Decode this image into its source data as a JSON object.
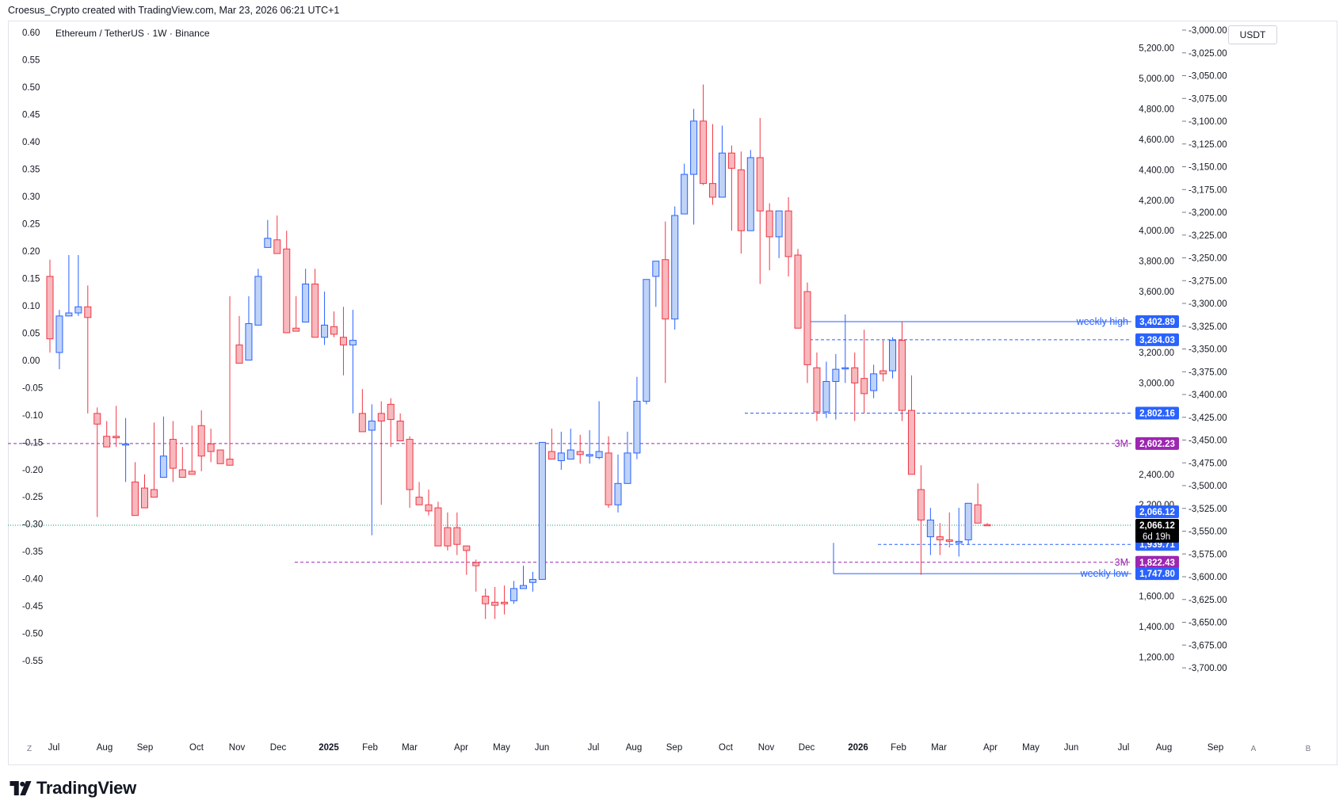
{
  "header": {
    "credit": "Croesus_Crypto created with TradingView.com, Mar 23, 2026 06:21 UTC+1"
  },
  "symbol_title": "Ethereum / TetherUS · 1W · Binance",
  "currency": "USDT",
  "footer": {
    "logo_text": "TradingView"
  },
  "axis_buttons": {
    "left": "Z",
    "auto": "A",
    "right": "B"
  },
  "colors": {
    "up_fill": "#bfd3f7",
    "up_border": "#2962ff",
    "down_fill": "#f7b9bd",
    "down_border": "#f23645",
    "blue_line": "#2962ff",
    "purple_line": "#9c27b0",
    "current_line": "#089981",
    "grid": "#f0f3fa"
  },
  "chart_data": {
    "type": "candlestick",
    "interval": "1W",
    "grid": false,
    "x_labels": [
      "Jul",
      "Aug",
      "Sep",
      "Oct",
      "Nov",
      "Dec",
      "2025",
      "Feb",
      "Mar",
      "Apr",
      "May",
      "Jun",
      "Jul",
      "Aug",
      "Sep",
      "Oct",
      "Nov",
      "Dec",
      "2026",
      "Feb",
      "Mar",
      "Apr",
      "May",
      "Jun",
      "Jul",
      "Aug",
      "Sep"
    ],
    "y_right_ticks": [
      "5,200.00",
      "5,000.00",
      "4,800.00",
      "4,600.00",
      "4,400.00",
      "4,200.00",
      "4,000.00",
      "3,800.00",
      "3,600.00",
      "3,400.00",
      "3,200.00",
      "3,000.00",
      "2,800.00",
      "2,600.00",
      "2,400.00",
      "2,200.00",
      "2,000.00",
      "1,800.00",
      "1,600.00",
      "1,400.00",
      "1,200.00"
    ],
    "y_left_ticks": [
      "0.60",
      "0.55",
      "0.50",
      "0.45",
      "0.40",
      "0.35",
      "0.30",
      "0.25",
      "0.20",
      "0.15",
      "0.10",
      "0.05",
      "0.00",
      "-0.05",
      "-0.10",
      "-0.15",
      "-0.20",
      "-0.25",
      "-0.30",
      "-0.35",
      "-0.40",
      "-0.45",
      "-0.50",
      "-0.55"
    ],
    "y_far_right_ticks": [
      "-3,000.00",
      "-3,025.00",
      "-3,050.00",
      "-3,075.00",
      "-3,100.00",
      "-3,125.00",
      "-3,150.00",
      "-3,175.00",
      "-3,200.00",
      "-3,225.00",
      "-3,250.00",
      "-3,275.00",
      "-3,300.00",
      "-3,325.00",
      "-3,350.00",
      "-3,375.00",
      "-3,400.00",
      "-3,425.00",
      "-3,450.00",
      "-3,475.00",
      "-3,500.00",
      "-3,525.00",
      "-3,550.00",
      "-3,575.00",
      "-3,600.00",
      "-3,625.00",
      "-3,650.00",
      "-3,675.00",
      "-3,700.00"
    ],
    "candles": [
      [
        3700,
        3810,
        3290,
        3200
      ],
      [
        3200,
        3480,
        3440,
        3090
      ],
      [
        3440,
        3840,
        3460,
        3480
      ],
      [
        3460,
        3840,
        3500,
        3440
      ],
      [
        3500,
        3640,
        3430,
        2800
      ],
      [
        2800,
        2840,
        2730,
        2120
      ],
      [
        2650,
        2750,
        2580,
        2660
      ],
      [
        2650,
        2850,
        2640,
        2580
      ],
      [
        2600,
        2770,
        2600,
        2350
      ],
      [
        2350,
        2480,
        2130,
        2270
      ],
      [
        2310,
        2400,
        2180,
        2200
      ],
      [
        2300,
        2740,
        2250,
        2430
      ],
      [
        2380,
        2780,
        2520,
        2620
      ],
      [
        2630,
        2750,
        2440,
        2350
      ],
      [
        2430,
        2580,
        2380,
        2400
      ],
      [
        2420,
        2720,
        2400,
        2720
      ],
      [
        2720,
        2820,
        2520,
        2420
      ],
      [
        2600,
        2700,
        2550,
        2480
      ],
      [
        2560,
        2540,
        2470,
        2470
      ],
      [
        2500,
        3570,
        2460,
        3610
      ],
      [
        3250,
        3440,
        3130,
        3150
      ],
      [
        3150,
        3570,
        3390,
        3450
      ],
      [
        3380,
        3750,
        3700,
        3950
      ],
      [
        3890,
        4070,
        3950,
        4110
      ],
      [
        3940,
        4100,
        3850,
        4200
      ],
      [
        3880,
        4000,
        3330,
        3330
      ],
      [
        3360,
        3570,
        3340,
        3470
      ],
      [
        3400,
        3750,
        3650,
        3430
      ],
      [
        3650,
        3750,
        3300,
        3300
      ],
      [
        3300,
        3600,
        3380,
        3250
      ],
      [
        3370,
        3470,
        3320,
        3300
      ],
      [
        3300,
        3500,
        3250,
        3050
      ],
      [
        3250,
        3480,
        3280,
        2800
      ],
      [
        2800,
        2960,
        2680,
        2700
      ],
      [
        2690,
        2860,
        2750,
        2000
      ],
      [
        2800,
        2880,
        2750,
        2200
      ],
      [
        2860,
        2900,
        2760,
        2580
      ],
      [
        2750,
        2800,
        2620,
        2620
      ],
      [
        2630,
        2650,
        2300,
        2180
      ],
      [
        2250,
        2350,
        2200,
        2220
      ],
      [
        2200,
        2300,
        2160,
        2130
      ],
      [
        2180,
        2220,
        1930,
        2050
      ],
      [
        2050,
        2150,
        1930,
        1900
      ],
      [
        2050,
        2150,
        1940,
        1870
      ],
      [
        1930,
        1840,
        1900,
        1740
      ],
      [
        1820,
        1840,
        1800,
        1630
      ],
      [
        1600,
        1650,
        1550,
        1450
      ],
      [
        1560,
        1660,
        1540,
        1450
      ],
      [
        1560,
        1670,
        1550,
        1480
      ],
      [
        1570,
        1700,
        1650,
        1550
      ],
      [
        1650,
        1800,
        1670,
        1720
      ],
      [
        1690,
        1760,
        1710,
        1630
      ],
      [
        1710,
        2610,
        2610,
        1710
      ],
      [
        2550,
        2700,
        2500,
        2500
      ],
      [
        2490,
        2680,
        2540,
        2430
      ],
      [
        2500,
        2700,
        2560,
        2550
      ],
      [
        2550,
        2660,
        2530,
        2470
      ],
      [
        2520,
        2690,
        2530,
        2470
      ],
      [
        2510,
        2880,
        2550,
        2500
      ],
      [
        2540,
        2650,
        2200,
        2180
      ],
      [
        2200,
        2530,
        2340,
        2150
      ],
      [
        2340,
        2680,
        2540,
        2400
      ],
      [
        2540,
        3040,
        2880,
        2500
      ],
      [
        2880,
        3570,
        3680,
        2860
      ],
      [
        3700,
        3760,
        3800,
        3500
      ],
      [
        3810,
        4060,
        3420,
        3000
      ],
      [
        3420,
        4160,
        4100,
        3350
      ],
      [
        4110,
        4440,
        4370,
        4300
      ],
      [
        4370,
        4800,
        4720,
        4040
      ],
      [
        4720,
        4960,
        4310,
        4300
      ],
      [
        4310,
        4700,
        4220,
        4170
      ],
      [
        4220,
        4690,
        4510,
        4220
      ],
      [
        4510,
        4560,
        4410,
        4000
      ],
      [
        4400,
        4520,
        4000,
        3850
      ],
      [
        4000,
        4530,
        4480,
        4000
      ],
      [
        4480,
        4740,
        4130,
        3650
      ],
      [
        4130,
        4180,
        3960,
        3740
      ],
      [
        3960,
        4120,
        4130,
        3820
      ],
      [
        4130,
        4220,
        3830,
        3700
      ],
      [
        3840,
        3880,
        3360,
        3450
      ],
      [
        3600,
        3660,
        3120,
        3000
      ],
      [
        3100,
        3200,
        2810,
        2750
      ],
      [
        2810,
        3140,
        3010,
        2770
      ],
      [
        3010,
        3190,
        3090,
        2760
      ],
      [
        3100,
        3450,
        3100,
        3000
      ],
      [
        3100,
        3200,
        3000,
        2750
      ],
      [
        3030,
        3350,
        2930,
        2800
      ],
      [
        2950,
        3120,
        3060,
        2900
      ],
      [
        3080,
        3280,
        3060,
        3010
      ],
      [
        3080,
        3300,
        3280,
        3030
      ],
      [
        3280,
        3400,
        2820,
        2750
      ],
      [
        2820,
        3050,
        2400,
        2420
      ],
      [
        2300,
        2460,
        2100,
        1740
      ],
      [
        1990,
        2180,
        2100,
        1870
      ],
      [
        1990,
        2080,
        1970,
        1870
      ],
      [
        1970,
        2150,
        1960,
        1920
      ],
      [
        1950,
        2180,
        1960,
        1860
      ],
      [
        1970,
        2200,
        2210,
        1940
      ],
      [
        2200,
        2340,
        2080,
        2080
      ],
      [
        2070,
        2080,
        2066,
        2060
      ]
    ],
    "levels": [
      {
        "label": "weekly high",
        "price": 3402.89,
        "price_label": "3,402.89",
        "style": "solid",
        "color": "#2962ff"
      },
      {
        "label": "",
        "price": 3284.03,
        "price_label": "3,284.03",
        "style": "dashed",
        "color": "#2962ff"
      },
      {
        "label": "",
        "price": 2802.16,
        "price_label": "2,802.16",
        "style": "dashed",
        "color": "#2962ff"
      },
      {
        "label": "3M",
        "price": 2602.23,
        "price_label": "2,602.23",
        "style": "dashed",
        "color": "#9c27b0"
      },
      {
        "label": "",
        "price": 1939.71,
        "price_label": "1,939.71",
        "style": "dashed",
        "color": "#2962ff"
      },
      {
        "label": "3M",
        "price": 1822.43,
        "price_label": "1,822.43",
        "style": "dashed",
        "color": "#9c27b0"
      },
      {
        "label": "weekly low",
        "price": 1747.8,
        "price_label": "1,747.80",
        "style": "solid",
        "color": "#2962ff"
      }
    ],
    "current_price": {
      "price": 2066.12,
      "price_label": "2,066.12",
      "countdown": "6d 19h"
    },
    "last_close_label": "2,066.12"
  }
}
